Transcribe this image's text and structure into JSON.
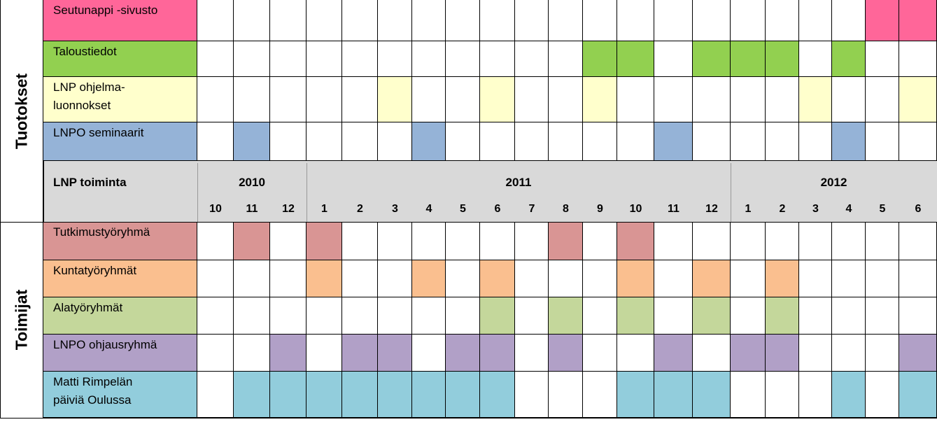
{
  "sections": {
    "top": "Tuotokset",
    "bottom": "Toimijat"
  },
  "header": {
    "label": "LNP toiminta",
    "years": [
      {
        "label": "2010",
        "span": 3
      },
      {
        "label": "2011",
        "span": 12
      },
      {
        "label": "2012",
        "span": 6
      }
    ],
    "months": [
      "10",
      "11",
      "12",
      "1",
      "2",
      "3",
      "4",
      "5",
      "6",
      "7",
      "8",
      "9",
      "10",
      "11",
      "12",
      "1",
      "2",
      "3",
      "4",
      "5",
      "6"
    ]
  },
  "top_rows": [
    {
      "label": "Seutunappi -sivusto",
      "color": "#ff6699",
      "filled": [
        19,
        20
      ]
    },
    {
      "label": "Taloustiedot",
      "color": "#92d050",
      "filled": [
        11,
        12,
        14,
        15,
        16,
        18
      ]
    },
    {
      "label": "LNP ohjelma-\nluonnokset",
      "color": "#ffffcc",
      "filled": [
        5,
        8,
        11,
        17,
        20
      ]
    },
    {
      "label": "LNPO seminaarit",
      "color": "#95b3d7",
      "filled": [
        1,
        6,
        13,
        18
      ]
    }
  ],
  "bottom_rows": [
    {
      "label": "Tutkimustyöryhmä",
      "color": "#d99594",
      "filled": [
        1,
        3,
        10,
        12
      ]
    },
    {
      "label": "Kuntatyöryhmät",
      "color": "#fabf8f",
      "filled": [
        3,
        6,
        8,
        12,
        14,
        16
      ]
    },
    {
      "label": "Alatyöryhmät",
      "color": "#c4d79b",
      "filled": [
        8,
        10,
        12,
        14,
        16
      ]
    },
    {
      "label": "LNPO ohjausryhmä",
      "color": "#b1a0c7",
      "filled": [
        2,
        4,
        5,
        7,
        8,
        10,
        13,
        15,
        16,
        20
      ]
    },
    {
      "label": "Matti Rimpelän\npäiviä Oulussa",
      "color": "#92cddc",
      "filled": [
        1,
        2,
        3,
        4,
        5,
        6,
        7,
        8,
        12,
        13,
        14,
        18,
        20
      ]
    }
  ]
}
